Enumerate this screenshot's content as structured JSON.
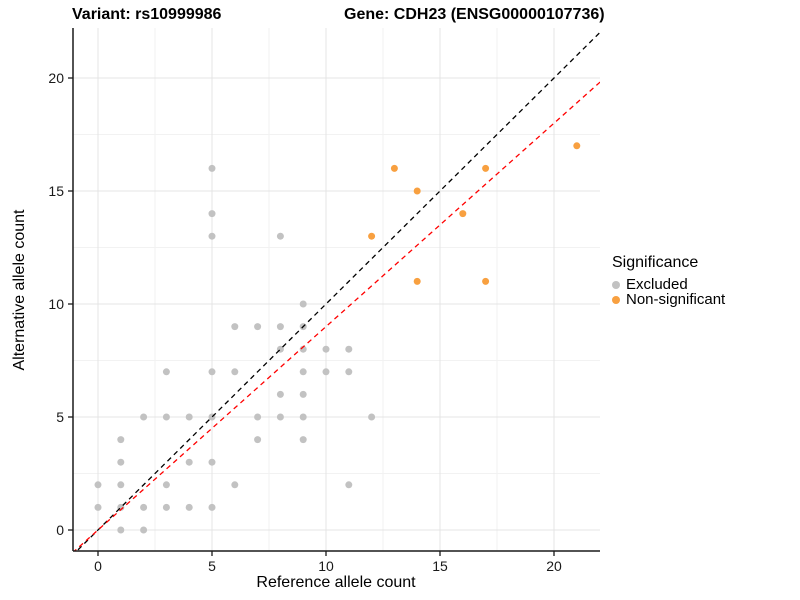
{
  "chart_data": {
    "type": "scatter",
    "title_left": "Variant: rs10999986",
    "title_right": "Gene: CDH23 (ENSG00000107736)",
    "xlabel": "Reference allele count",
    "ylabel": "Alternative allele count",
    "xlim": [
      -1.1,
      22.0
    ],
    "ylim": [
      -0.93,
      22.2
    ],
    "x_ticks": [
      0,
      5,
      10,
      15,
      20
    ],
    "y_ticks": [
      0,
      5,
      10,
      15,
      20
    ],
    "x_minor": [
      2.5,
      7.5,
      12.5,
      17.5
    ],
    "y_minor": [
      2.5,
      7.5,
      12.5,
      17.5
    ],
    "grid": true,
    "legend_title": "Significance",
    "legend_position": "right",
    "series": [
      {
        "name": "Excluded",
        "color": "#c2c2c2",
        "points": [
          [
            1,
            0
          ],
          [
            2,
            0
          ],
          [
            0,
            1
          ],
          [
            1,
            1
          ],
          [
            2,
            1
          ],
          [
            3,
            1
          ],
          [
            4,
            1
          ],
          [
            5,
            1
          ],
          [
            0,
            2
          ],
          [
            1,
            2
          ],
          [
            3,
            2
          ],
          [
            6,
            2
          ],
          [
            11,
            2
          ],
          [
            1,
            3
          ],
          [
            4,
            3
          ],
          [
            5,
            3
          ],
          [
            1,
            4
          ],
          [
            7,
            4
          ],
          [
            9,
            4
          ],
          [
            2,
            5
          ],
          [
            3,
            5
          ],
          [
            4,
            5
          ],
          [
            5,
            5
          ],
          [
            7,
            5
          ],
          [
            8,
            5
          ],
          [
            9,
            5
          ],
          [
            12,
            5
          ],
          [
            8,
            6
          ],
          [
            9,
            6
          ],
          [
            3,
            7
          ],
          [
            5,
            7
          ],
          [
            6,
            7
          ],
          [
            9,
            7
          ],
          [
            10,
            7
          ],
          [
            11,
            7
          ],
          [
            8,
            8
          ],
          [
            9,
            8
          ],
          [
            10,
            8
          ],
          [
            11,
            8
          ],
          [
            6,
            9
          ],
          [
            7,
            9
          ],
          [
            8,
            9
          ],
          [
            9,
            9
          ],
          [
            9,
            10
          ],
          [
            5,
            13
          ],
          [
            8,
            13
          ],
          [
            5,
            14
          ],
          [
            5,
            16
          ]
        ]
      },
      {
        "name": "Non-significant",
        "color": "#f8a040",
        "points": [
          [
            12,
            13
          ],
          [
            13,
            16
          ],
          [
            14,
            15
          ],
          [
            14,
            11
          ],
          [
            16,
            14
          ],
          [
            17,
            16
          ],
          [
            17,
            11
          ],
          [
            21,
            17
          ]
        ]
      }
    ],
    "lines": [
      {
        "name": "identity-line",
        "color": "#000000",
        "slope": 1.0,
        "intercept": 0,
        "dash": "5,4"
      },
      {
        "name": "regression-line",
        "color": "#ff0000",
        "slope": 0.9,
        "intercept": 0,
        "dash": "5,4"
      }
    ]
  },
  "style": {
    "major_grid": "#e4e4e4",
    "minor_grid": "#f2f2f2",
    "axis_line": "#1a1a1a",
    "point_radius": 3.5
  }
}
